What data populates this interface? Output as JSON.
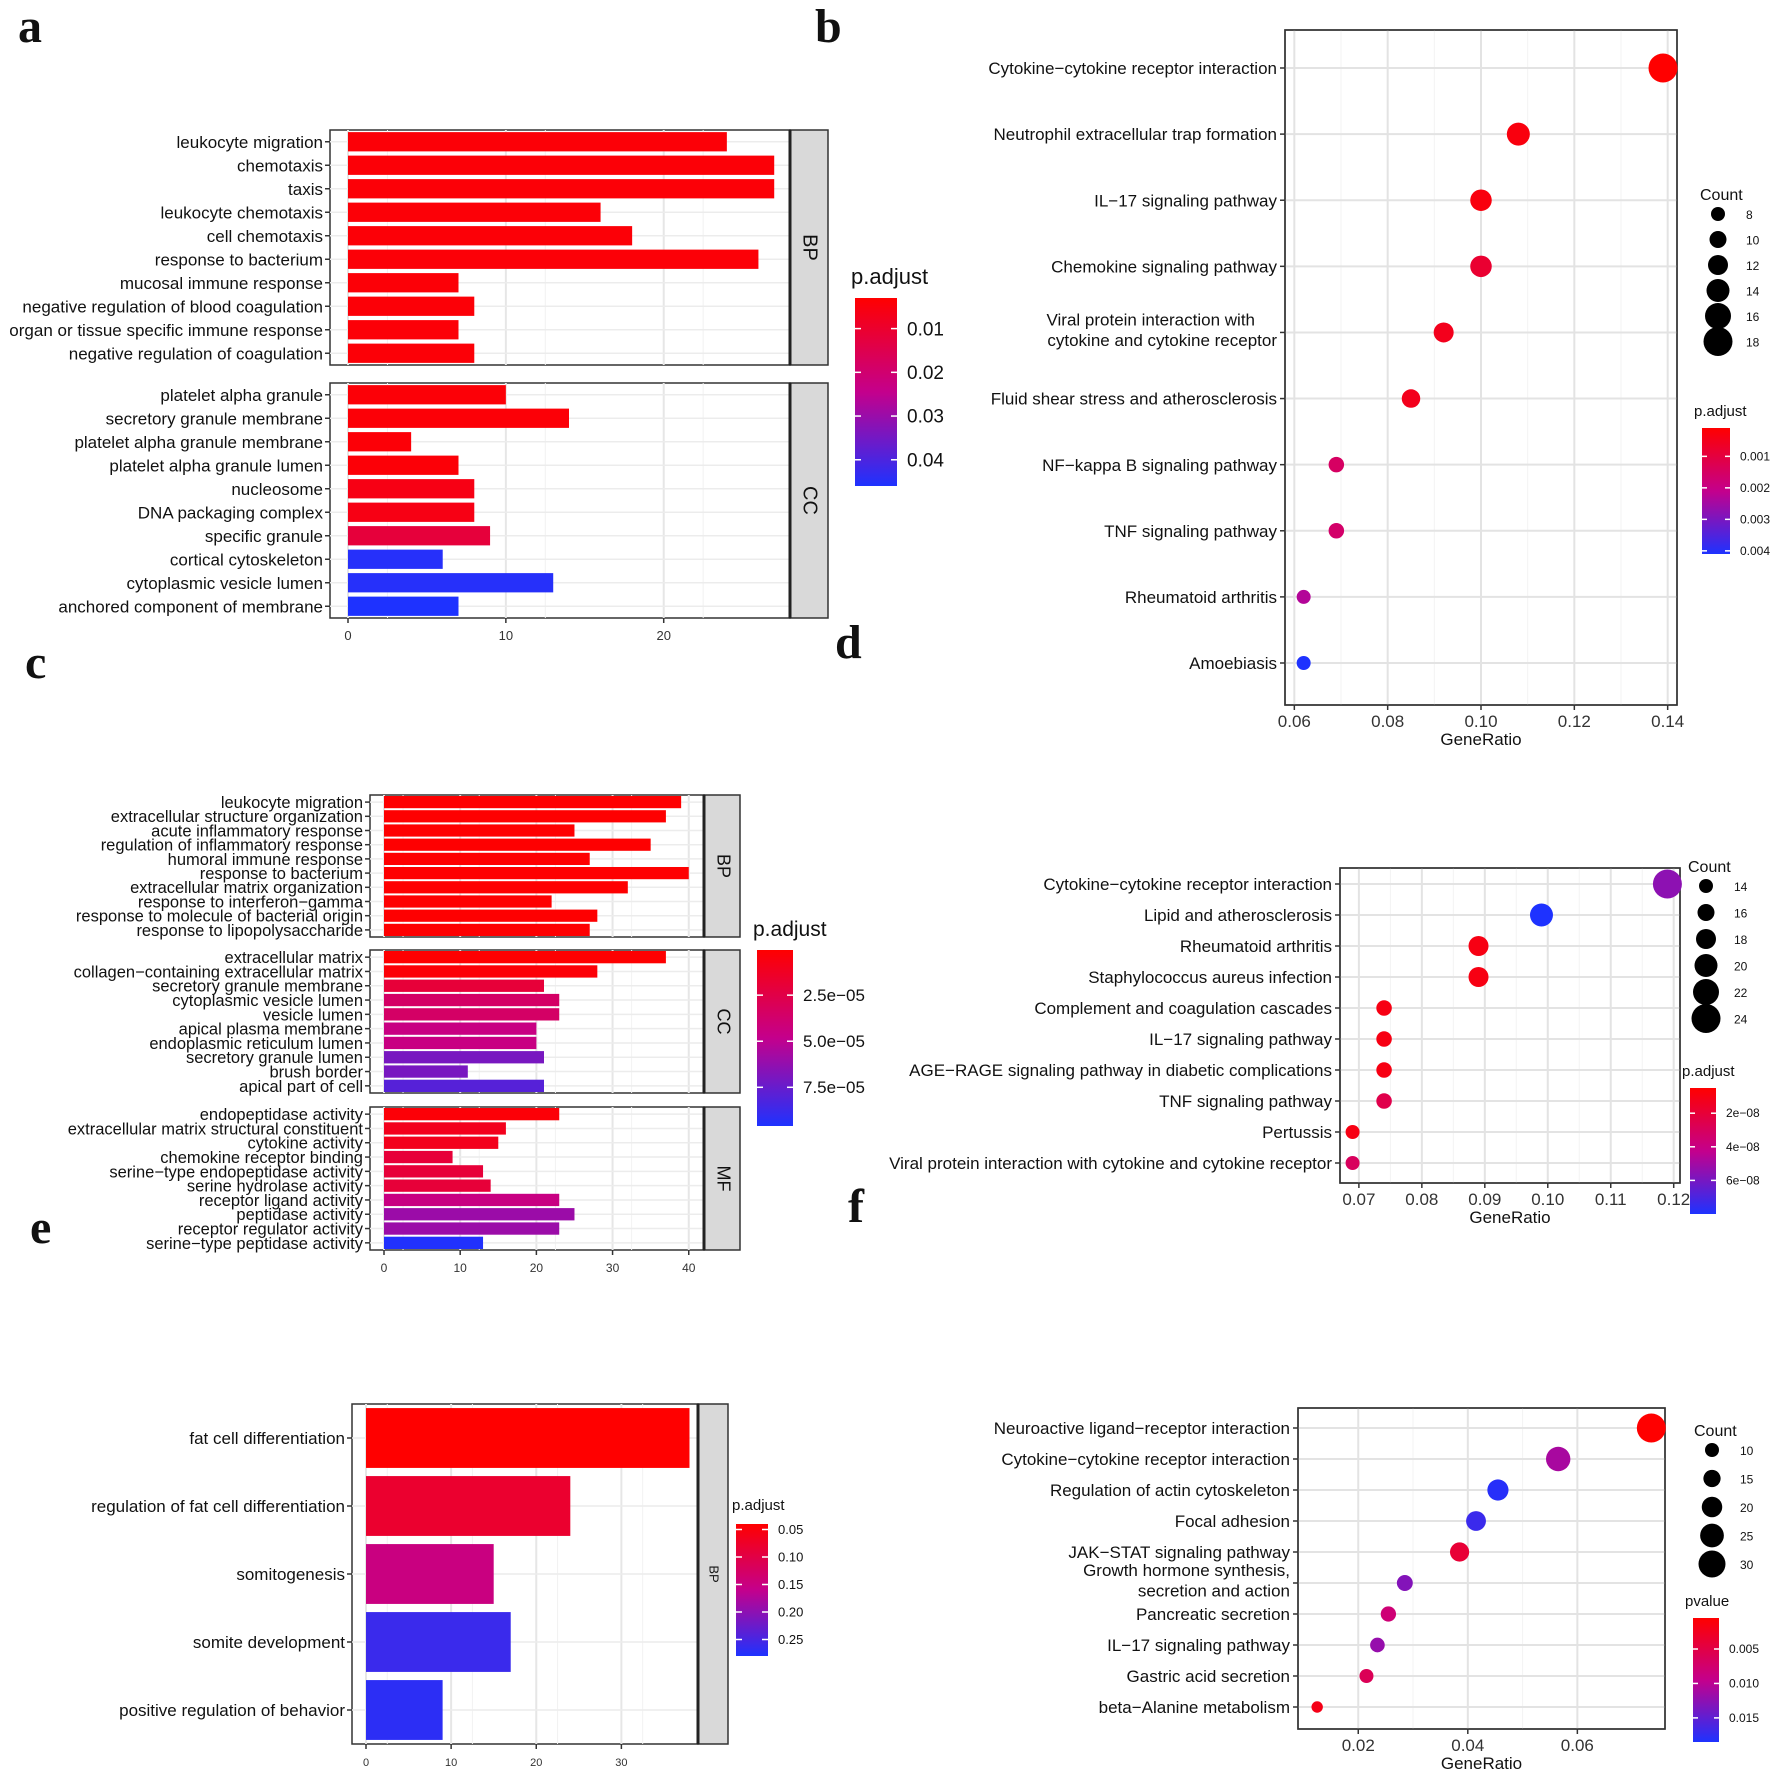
{
  "chart_data": [
    {
      "panel": "a",
      "type": "bar",
      "orientation": "horizontal",
      "xlim": [
        0,
        28
      ],
      "x_ticks": [
        0,
        10,
        20
      ],
      "legend": {
        "title": "p.adjust",
        "ticks": [
          "0.01",
          "0.02",
          "0.03",
          "0.04"
        ],
        "range": [
          0.003,
          0.046
        ],
        "placement": "right"
      },
      "facets": [
        {
          "label": "BP",
          "categories": [
            "leukocyte migration",
            "chemotaxis",
            "taxis",
            "leukocyte chemotaxis",
            "cell chemotaxis",
            "response to bacterium",
            "mucosal immune response",
            "negative regulation of blood coagulation",
            "organ or tissue specific immune response",
            "negative regulation of coagulation"
          ],
          "values": [
            24,
            27,
            27,
            16,
            18,
            26,
            7,
            8,
            7,
            8
          ],
          "p_adjust": [
            0.004,
            0.004,
            0.004,
            0.004,
            0.004,
            0.004,
            0.004,
            0.004,
            0.004,
            0.004
          ]
        },
        {
          "label": "CC",
          "categories": [
            "platelet alpha granule",
            "secretory granule membrane",
            "platelet alpha granule membrane",
            "platelet alpha granule lumen",
            "nucleosome",
            "DNA packaging complex",
            "specific granule",
            "cortical cytoskeleton",
            "cytoplasmic vesicle lumen",
            "anchored component of membrane"
          ],
          "values": [
            10,
            14,
            4,
            7,
            8,
            8,
            9,
            6,
            13,
            7
          ],
          "p_adjust": [
            0.004,
            0.004,
            0.004,
            0.004,
            0.006,
            0.006,
            0.012,
            0.045,
            0.045,
            0.046
          ]
        }
      ]
    },
    {
      "panel": "b",
      "type": "scatter",
      "xlabel": "GeneRatio",
      "xlim": [
        0.058,
        0.142
      ],
      "x_ticks": [
        "0.06",
        "0.08",
        "0.10",
        "0.12",
        "0.14"
      ],
      "categories": [
        "Cytokine−cytokine receptor interaction",
        "Neutrophil extracellular trap formation",
        "IL−17 signaling pathway",
        "Chemokine signaling pathway",
        "Viral protein interaction with\ncytokine and cytokine receptor",
        "Fluid shear stress and atherosclerosis",
        "NF−kappa B signaling pathway",
        "TNF signaling pathway",
        "Rheumatoid arthritis",
        "Amoebiasis"
      ],
      "x": [
        0.139,
        0.108,
        0.1,
        0.1,
        0.092,
        0.085,
        0.069,
        0.069,
        0.062,
        0.062
      ],
      "count": [
        18,
        14,
        13,
        13,
        12,
        11,
        9,
        9,
        8,
        8
      ],
      "p_adjust": [
        0.0001,
        0.0003,
        0.0003,
        0.0008,
        0.0005,
        0.0005,
        0.0015,
        0.0016,
        0.0023,
        0.0041
      ],
      "size_legend": {
        "title": "Count",
        "values": [
          8,
          10,
          12,
          14,
          16,
          18
        ]
      },
      "color_legend": {
        "title": "p.adjust",
        "ticks": [
          "0.001",
          "0.002",
          "0.003",
          "0.004"
        ],
        "range": [
          0.0001,
          0.0041
        ]
      }
    },
    {
      "panel": "c",
      "type": "bar",
      "orientation": "horizontal",
      "xlim": [
        0,
        42
      ],
      "x_ticks": [
        0,
        10,
        20,
        30,
        40
      ],
      "legend": {
        "title": "p.adjust",
        "ticks": [
          "2.5e−05",
          "5.0e−05",
          "7.5e−05"
        ],
        "range": [
          5e-07,
          9.6e-05
        ],
        "placement": "right"
      },
      "facets": [
        {
          "label": "BP",
          "categories": [
            "leukocyte migration",
            "extracellular structure organization",
            "acute inflammatory response",
            "regulation of inflammatory response",
            "humoral immune response",
            "response to bacterium",
            "extracellular matrix organization",
            "response to interferon−gamma",
            "response to molecule of bacterial origin",
            "response to lipopolysaccharide"
          ],
          "values": [
            39,
            37,
            25,
            35,
            27,
            40,
            32,
            22,
            28,
            27
          ],
          "p_adjust": [
            1e-06,
            1e-06,
            1e-06,
            1e-06,
            1e-06,
            1e-06,
            1e-06,
            1e-06,
            1e-06,
            1e-06
          ]
        },
        {
          "label": "CC",
          "categories": [
            "extracellular matrix",
            "collagen−containing extracellular matrix",
            "secretory granule membrane",
            "cytoplasmic vesicle lumen",
            "vesicle lumen",
            "apical plasma membrane",
            "endoplasmic reticulum lumen",
            "secretory granule lumen",
            "brush border",
            "apical part of cell"
          ],
          "values": [
            37,
            28,
            21,
            23,
            23,
            20,
            20,
            21,
            11,
            21
          ],
          "p_adjust": [
            1e-06,
            3e-06,
            2e-05,
            3.5e-05,
            3.5e-05,
            4.5e-05,
            4.5e-05,
            7e-05,
            7e-05,
            8e-05
          ]
        },
        {
          "label": "MF",
          "categories": [
            "endopeptidase activity",
            "extracellular matrix structural constituent",
            "cytokine activity",
            "chemokine receptor binding",
            "serine−type endopeptidase activity",
            "serine hydrolase activity",
            "receptor ligand activity",
            "peptidase activity",
            "receptor regulator activity",
            "serine−type peptidase activity"
          ],
          "values": [
            23,
            16,
            15,
            9,
            13,
            14,
            23,
            25,
            23,
            13
          ],
          "p_adjust": [
            3e-06,
            1e-05,
            1e-05,
            2e-05,
            2e-05,
            2e-05,
            4.5e-05,
            6e-05,
            6e-05,
            9.5e-05
          ]
        }
      ]
    },
    {
      "panel": "d",
      "type": "scatter",
      "xlabel": "GeneRatio",
      "xlim": [
        0.067,
        0.121
      ],
      "x_ticks": [
        "0.07",
        "0.08",
        "0.09",
        "0.10",
        "0.11",
        "0.12"
      ],
      "categories": [
        "Cytokine−cytokine receptor interaction",
        "Lipid and atherosclerosis",
        "Rheumatoid arthritis",
        "Staphylococcus aureus infection",
        "Complement and coagulation cascades",
        "IL−17 signaling pathway",
        "AGE−RAGE signaling pathway in diabetic complications",
        "TNF signaling pathway",
        "Pertussis",
        "Viral protein interaction with cytokine and cytokine receptor"
      ],
      "x": [
        0.119,
        0.099,
        0.089,
        0.089,
        0.074,
        0.074,
        0.074,
        0.074,
        0.069,
        0.069
      ],
      "count": [
        24,
        20,
        18,
        18,
        15,
        15,
        15,
        15,
        14,
        14
      ],
      "p_adjust": [
        5.5e-08,
        8e-08,
        1e-08,
        1e-08,
        1e-08,
        1e-08,
        1e-08,
        2.5e-08,
        1e-08,
        3e-08
      ],
      "size_legend": {
        "title": "Count",
        "values": [
          14,
          16,
          18,
          20,
          22,
          24
        ]
      },
      "color_legend": {
        "title": "p.adjust",
        "ticks": [
          "2e−08",
          "4e−08",
          "6e−08"
        ],
        "range": [
          5e-09,
          8e-08
        ]
      }
    },
    {
      "panel": "e",
      "type": "bar",
      "orientation": "horizontal",
      "xlim": [
        0,
        39
      ],
      "x_ticks": [
        0,
        10,
        20,
        30
      ],
      "legend": {
        "title": "p.adjust",
        "ticks": [
          "0.05",
          "0.10",
          "0.15",
          "0.20",
          "0.25"
        ],
        "range": [
          0.04,
          0.28
        ],
        "placement": "right"
      },
      "facets": [
        {
          "label": "BP",
          "categories": [
            "fat cell differentiation",
            "regulation of fat cell differentiation",
            "somitogenesis",
            "somite development",
            "positive regulation of behavior"
          ],
          "values": [
            38,
            24,
            15,
            17,
            9
          ],
          "p_adjust": [
            0.04,
            0.08,
            0.15,
            0.26,
            0.27
          ]
        }
      ]
    },
    {
      "panel": "f",
      "type": "scatter",
      "xlabel": "GeneRatio",
      "xlim": [
        0.009,
        0.076
      ],
      "x_ticks": [
        "0.02",
        "0.04",
        "0.06"
      ],
      "categories": [
        "Neuroactive ligand−receptor interaction",
        "Cytokine−cytokine receptor interaction",
        "Regulation of actin cytoskeleton",
        "Focal adhesion",
        "JAK−STAT signaling pathway",
        "Growth hormone synthesis,\nsecretion and action",
        "Pancreatic secretion",
        "IL−17 signaling pathway",
        "Gastric acid secretion",
        "beta−Alanine metabolism"
      ],
      "x": [
        0.0735,
        0.0565,
        0.0455,
        0.0415,
        0.0385,
        0.0285,
        0.0255,
        0.0235,
        0.0215,
        0.0125
      ],
      "count": [
        33,
        26,
        21,
        19,
        18,
        13,
        12,
        11,
        10,
        6
      ],
      "p_adjust": [
        0.0005,
        0.011,
        0.018,
        0.017,
        0.004,
        0.013,
        0.008,
        0.012,
        0.006,
        0.002
      ],
      "size_legend": {
        "title": "Count",
        "values": [
          10,
          15,
          20,
          25,
          30
        ]
      },
      "color_legend": {
        "title": "pvalue",
        "ticks": [
          "0.005",
          "0.010",
          "0.015"
        ],
        "range": [
          0.0005,
          0.0185
        ]
      }
    }
  ]
}
